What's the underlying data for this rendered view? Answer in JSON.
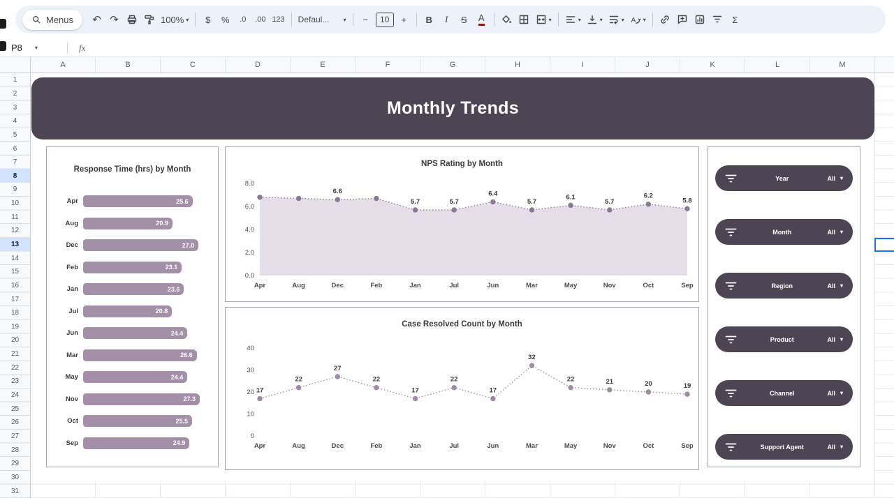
{
  "toolbar": {
    "menus_label": "Menus",
    "zoom": "100%",
    "currency": "$",
    "percent": "%",
    "decrease_decimal": ".0",
    "increase_decimal": ".00",
    "more_formats": "123",
    "font_name": "Defaul...",
    "font_size": "10",
    "bold": "B",
    "italic": "I",
    "strikethrough": "S",
    "text_color": "A",
    "functions": "Σ"
  },
  "icons": {
    "undo": "↶",
    "redo": "↷",
    "caret": "▾",
    "minus": "−",
    "plus": "+"
  },
  "formula_bar": {
    "cell_reference": "P8",
    "fx_label": "fx"
  },
  "grid": {
    "columns": [
      "A",
      "B",
      "C",
      "D",
      "E",
      "F",
      "G",
      "H",
      "I",
      "J",
      "K",
      "L",
      "M"
    ],
    "row_count": 31,
    "highlighted_rows": [
      8,
      13
    ]
  },
  "dashboard": {
    "title": "Monthly Trends",
    "filters": [
      {
        "label": "Year",
        "value": "All"
      },
      {
        "label": "Month",
        "value": "All"
      },
      {
        "label": "Region",
        "value": "All"
      },
      {
        "label": "Product",
        "value": "All"
      },
      {
        "label": "Channel",
        "value": "All"
      },
      {
        "label": "Support Agent",
        "value": "All"
      }
    ]
  },
  "chart_data": [
    {
      "type": "bar",
      "orientation": "horizontal",
      "title": "Response Time (hrs) by Month",
      "categories": [
        "Apr",
        "Aug",
        "Dec",
        "Feb",
        "Jan",
        "Jul",
        "Jun",
        "Mar",
        "May",
        "Nov",
        "Oct",
        "Sep"
      ],
      "values": [
        25.6,
        20.9,
        27.0,
        23.1,
        23.6,
        20.8,
        24.4,
        26.6,
        24.4,
        27.3,
        25.5,
        24.9
      ],
      "xlim": [
        0,
        27.3
      ],
      "bar_color": "#a48fa9",
      "value_label_color": "#ffffff"
    },
    {
      "type": "area",
      "title": "NPS Rating by Month",
      "categories": [
        "Apr",
        "Aug",
        "Dec",
        "Feb",
        "Jan",
        "Jul",
        "Jun",
        "Mar",
        "May",
        "Nov",
        "Oct",
        "Sep"
      ],
      "values": [
        6.8,
        6.7,
        6.6,
        6.7,
        5.7,
        5.7,
        6.4,
        5.7,
        6.1,
        5.7,
        6.2,
        5.8
      ],
      "point_labels": [
        null,
        null,
        "6.6",
        null,
        "5.7",
        "5.7",
        "6.4",
        "5.7",
        "6.1",
        "5.7",
        "6.2",
        "5.8"
      ],
      "ylim": [
        0,
        8
      ],
      "ytick_values": [
        0,
        2,
        4,
        6,
        8
      ],
      "ytick_labels": [
        "0.0",
        "2.0",
        "4.0",
        "6.0",
        "8.0"
      ],
      "fill_color": "#e5dee9",
      "line_color": "#8c7894",
      "point_color": "#8c7894",
      "grid": "off",
      "legend": "none"
    },
    {
      "type": "line",
      "title": "Case Resolved Count by Month",
      "categories": [
        "Apr",
        "Aug",
        "Dec",
        "Feb",
        "Jan",
        "Jul",
        "Jun",
        "Mar",
        "May",
        "Nov",
        "Oct",
        "Sep"
      ],
      "values": [
        17,
        22,
        27,
        22,
        17,
        22,
        17,
        32,
        22,
        21,
        20,
        19
      ],
      "point_labels": [
        "17",
        "22",
        "27",
        "22",
        "17",
        "22",
        "17",
        "32",
        "22",
        "21",
        "20",
        "19"
      ],
      "ylim": [
        0,
        40
      ],
      "ytick_values": [
        0,
        10,
        20,
        30,
        40
      ],
      "ytick_labels": [
        "0",
        "10",
        "20",
        "30",
        "40"
      ],
      "fill_color": null,
      "line_color": "#9c8aa1",
      "point_color": "#9c8aa1",
      "grid": "off",
      "legend": "none"
    }
  ]
}
